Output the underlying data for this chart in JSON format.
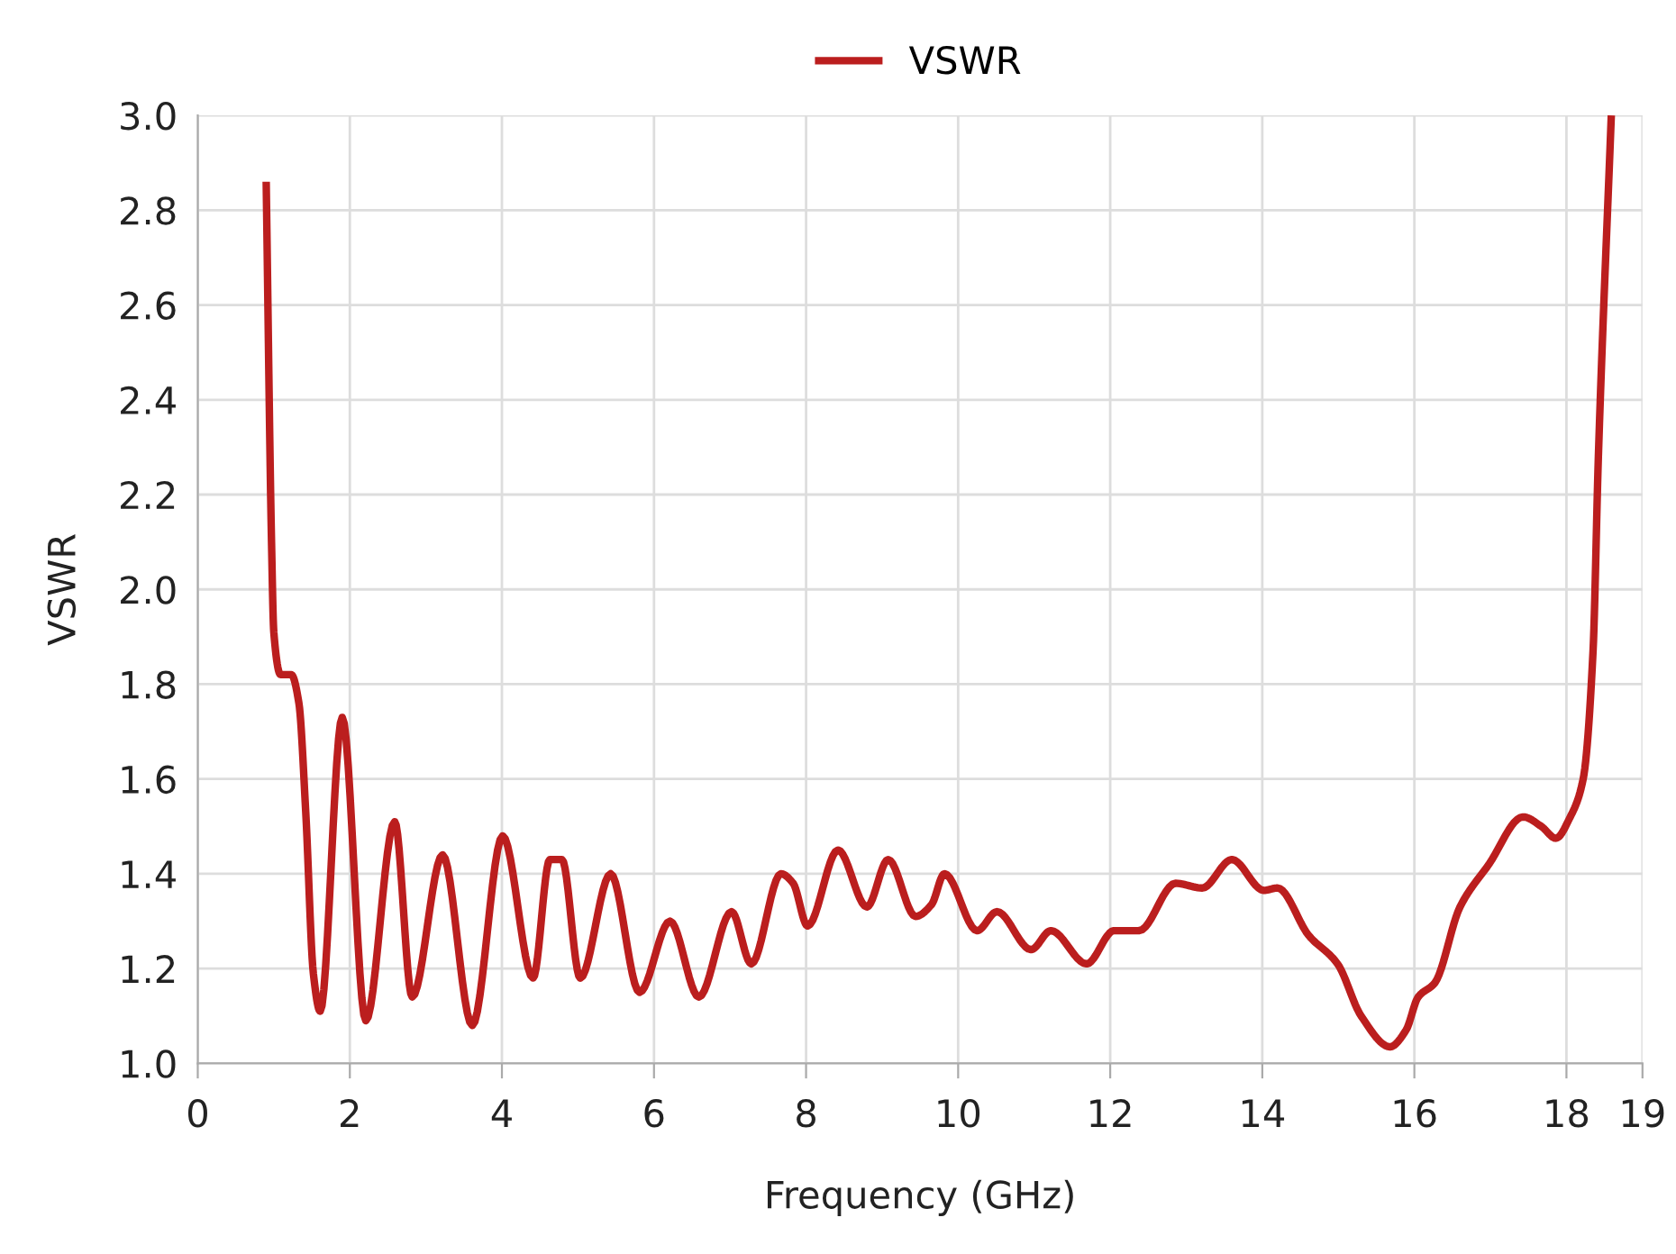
{
  "chart_data": {
    "type": "line",
    "xlabel": "Frequency (GHz)",
    "ylabel": "VSWR",
    "xlim": [
      0,
      19
    ],
    "xticks": [
      0,
      2,
      4,
      6,
      8,
      10,
      12,
      14,
      16,
      18,
      19
    ],
    "ylim": [
      1.0,
      3.0
    ],
    "yticks": [
      {
        "value": 1,
        "label": "1.0"
      },
      1.2,
      1.4,
      1.6,
      1.8,
      {
        "value": 2,
        "label": "2.0"
      },
      2.2,
      2.4,
      2.6,
      2.8,
      {
        "value": 3,
        "label": "3.0"
      }
    ],
    "grid": true,
    "legend": "top",
    "marker": "none",
    "line_style": "solid",
    "series": [
      {
        "name": "VSWR",
        "color": "#bb1e1e",
        "x": [
          0.9,
          0.97,
          1.0,
          1.09,
          1.23,
          1.33,
          1.42,
          1.52,
          1.61,
          1.9,
          2.21,
          2.59,
          2.82,
          3.22,
          3.61,
          4.01,
          4.41,
          4.63,
          4.79,
          5.03,
          5.43,
          5.81,
          6.21,
          6.59,
          7.02,
          7.28,
          7.67,
          7.83,
          8.02,
          8.42,
          8.8,
          9.08,
          9.44,
          9.65,
          9.82,
          10.25,
          10.51,
          10.96,
          11.22,
          11.69,
          12.05,
          12.38,
          12.86,
          13.21,
          13.6,
          14.02,
          14.2,
          14.61,
          14.99,
          15.3,
          15.68,
          15.89,
          16.05,
          16.27,
          16.6,
          16.98,
          17.43,
          17.67,
          17.86,
          18.05,
          18.22,
          18.35,
          18.42,
          18.59
        ],
        "values": [
          2.86,
          2.1,
          1.91,
          1.82,
          1.82,
          1.76,
          1.53,
          1.19,
          1.11,
          1.73,
          1.09,
          1.51,
          1.14,
          1.44,
          1.08,
          1.48,
          1.18,
          1.43,
          1.43,
          1.18,
          1.4,
          1.15,
          1.3,
          1.14,
          1.32,
          1.21,
          1.4,
          1.38,
          1.29,
          1.45,
          1.33,
          1.43,
          1.31,
          1.335,
          1.4,
          1.28,
          1.32,
          1.24,
          1.28,
          1.21,
          1.28,
          1.28,
          1.38,
          1.37,
          1.43,
          1.365,
          1.37,
          1.27,
          1.21,
          1.1,
          1.035,
          1.07,
          1.14,
          1.17,
          1.33,
          1.42,
          1.52,
          1.5,
          1.475,
          1.52,
          1.6,
          1.87,
          2.28,
          3.0
        ]
      }
    ]
  }
}
